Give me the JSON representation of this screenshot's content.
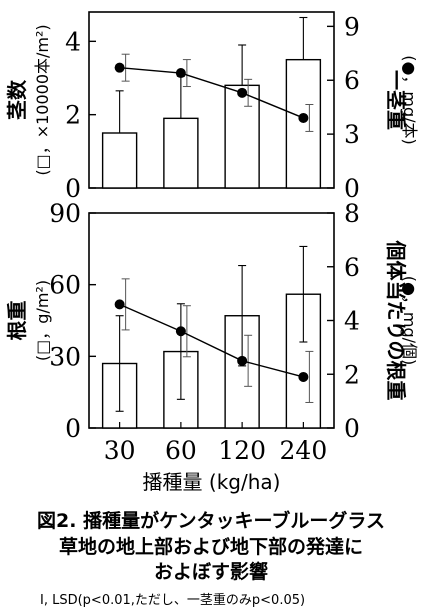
{
  "chart_data": [
    {
      "type": "bar",
      "panel": "top",
      "categories": [
        "30",
        "60",
        "120",
        "240"
      ],
      "series": [
        {
          "axis": "left",
          "kind": "bar",
          "values": [
            1.5,
            1.9,
            2.8,
            3.5
          ],
          "error": [
            1.15,
            1.15,
            1.1,
            1.15
          ],
          "errorbar_side": "up"
        },
        {
          "axis": "right",
          "kind": "line",
          "marker": "filled-circle",
          "values": [
            6.7,
            6.4,
            5.3,
            3.9
          ],
          "error": [
            1.5,
            1.5,
            1.5,
            1.5
          ]
        }
      ],
      "ylabel_left": "茎数\n(□，×10000本/m²)",
      "ylabel_right": "一茎重\n(●，mg/本)",
      "ylim_left": [
        0,
        4.8
      ],
      "yticks_left": [
        "0",
        "2",
        "4"
      ],
      "ylim_right": [
        0,
        9.8
      ],
      "yticks_right": [
        "0",
        "3",
        "6",
        "9"
      ]
    },
    {
      "type": "bar",
      "panel": "bottom",
      "categories": [
        "30",
        "60",
        "120",
        "240"
      ],
      "series": [
        {
          "axis": "left",
          "kind": "bar",
          "values": [
            27,
            32,
            47,
            56
          ],
          "error": [
            20,
            20,
            21,
            20
          ],
          "errorbar_side": "both"
        },
        {
          "axis": "right",
          "kind": "line",
          "marker": "filled-circle",
          "values": [
            4.6,
            3.6,
            2.5,
            1.9
          ],
          "error": [
            1.9,
            1.9,
            1.9,
            1.9
          ]
        }
      ],
      "ylabel_left": "根重\n(□，g/m²)",
      "ylabel_right": "個体当たりの根重\n(●，mg/個)",
      "ylim_left": [
        0,
        90
      ],
      "yticks_left": [
        "0",
        "30",
        "60",
        "90"
      ],
      "ylim_right": [
        0,
        8
      ],
      "yticks_right": [
        "0",
        "2",
        "4",
        "6",
        "8"
      ],
      "xlabel": "播種量 (kg/ha)"
    }
  ],
  "caption": {
    "line1": "図2. 播種量がケンタッキーブルーグラス",
    "line2": "草地の地上部および地下部の発達に",
    "line3": "およぼす影響"
  },
  "note": "I,  LSD(p<0.01,ただし、一茎重のみp<0.05)"
}
